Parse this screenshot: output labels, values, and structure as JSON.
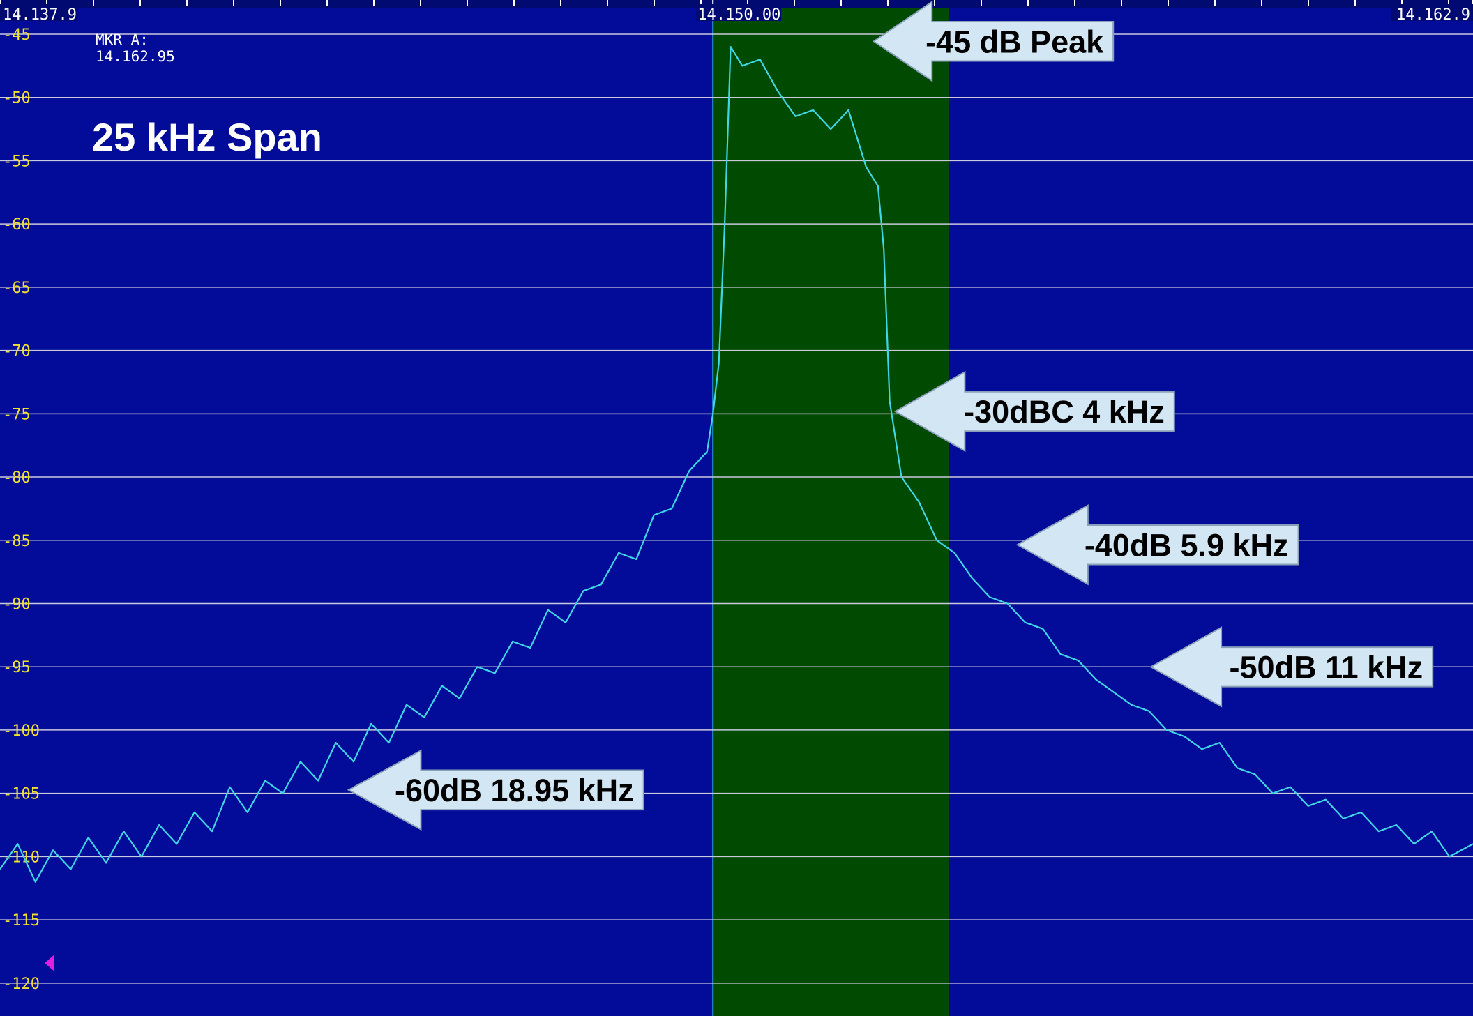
{
  "chart_data": {
    "type": "line",
    "title": "25 kHz Span",
    "marker_label": "MKR A:",
    "marker_value": "14.162.95",
    "color": "#3fd6e6",
    "background": "#020c98",
    "band": [
      14.15,
      14.154
    ],
    "band_color": "#014a02",
    "grid": true,
    "xlim": [
      14.1379,
      14.1629
    ],
    "xticks": [
      {
        "value": 14.1379,
        "label": "14.137.9"
      },
      {
        "value": 14.15,
        "label": "14.150.00"
      },
      {
        "value": 14.1629,
        "label": "14.162.9"
      }
    ],
    "ylim": [
      -122.6,
      -42.3
    ],
    "yticks": [
      -45,
      -50,
      -55,
      -60,
      -65,
      -70,
      -75,
      -80,
      -85,
      -90,
      -95,
      -100,
      -105,
      -110,
      -115,
      -120
    ],
    "x": [
      14.1379,
      14.1382,
      14.1385,
      14.1388,
      14.1391,
      14.1394,
      14.1397,
      14.14,
      14.1403,
      14.1406,
      14.1409,
      14.1412,
      14.1415,
      14.1418,
      14.1421,
      14.1424,
      14.1427,
      14.143,
      14.1433,
      14.1436,
      14.1439,
      14.1442,
      14.1445,
      14.1448,
      14.1451,
      14.1454,
      14.1457,
      14.146,
      14.1463,
      14.1466,
      14.1469,
      14.1472,
      14.1475,
      14.1478,
      14.1481,
      14.1484,
      14.1487,
      14.149,
      14.1493,
      14.1496,
      14.1499,
      14.15,
      14.1501,
      14.1502,
      14.1503,
      14.1505,
      14.1508,
      14.1511,
      14.1514,
      14.1517,
      14.152,
      14.1523,
      14.1526,
      14.1528,
      14.1529,
      14.153,
      14.1532,
      14.1535,
      14.1538,
      14.1541,
      14.1544,
      14.1547,
      14.155,
      14.1553,
      14.1556,
      14.1559,
      14.1562,
      14.1565,
      14.1568,
      14.1571,
      14.1574,
      14.1577,
      14.158,
      14.1583,
      14.1586,
      14.1589,
      14.1592,
      14.1595,
      14.1598,
      14.1601,
      14.1604,
      14.1607,
      14.161,
      14.1613,
      14.1616,
      14.1619,
      14.1622,
      14.1625,
      14.1629
    ],
    "values": [
      -111,
      -109,
      -112,
      -109.5,
      -111,
      -108.5,
      -110.5,
      -108,
      -110,
      -107.5,
      -109,
      -106.5,
      -108,
      -104.5,
      -106.5,
      -104,
      -105,
      -102.5,
      -104,
      -101,
      -102.5,
      -99.5,
      -101,
      -98,
      -99,
      -96.5,
      -97.5,
      -95,
      -95.5,
      -93,
      -93.5,
      -90.5,
      -91.5,
      -89,
      -88.5,
      -86,
      -86.5,
      -83,
      -82.5,
      -79.5,
      -78,
      -75,
      -71,
      -60,
      -46,
      -47.5,
      -47,
      -49.5,
      -51.5,
      -51,
      -52.5,
      -51,
      -55.5,
      -57,
      -62,
      -74,
      -80,
      -82,
      -85,
      -86,
      -88,
      -89.5,
      -90,
      -91.5,
      -92,
      -94,
      -94.5,
      -96,
      -97,
      -98,
      -98.5,
      -100,
      -100.5,
      -101.5,
      -101,
      -103,
      -103.5,
      -105,
      -104.5,
      -106,
      -105.5,
      -107,
      -106.5,
      -108,
      -107.5,
      -109,
      -108,
      -110,
      -109
    ],
    "annotations": [
      "-45 dB Peak",
      "-30dBC 4 kHz",
      "-40dB 5.9 kHz",
      "-50dB 11 kHz",
      "-60dB 18.95 kHz"
    ]
  }
}
